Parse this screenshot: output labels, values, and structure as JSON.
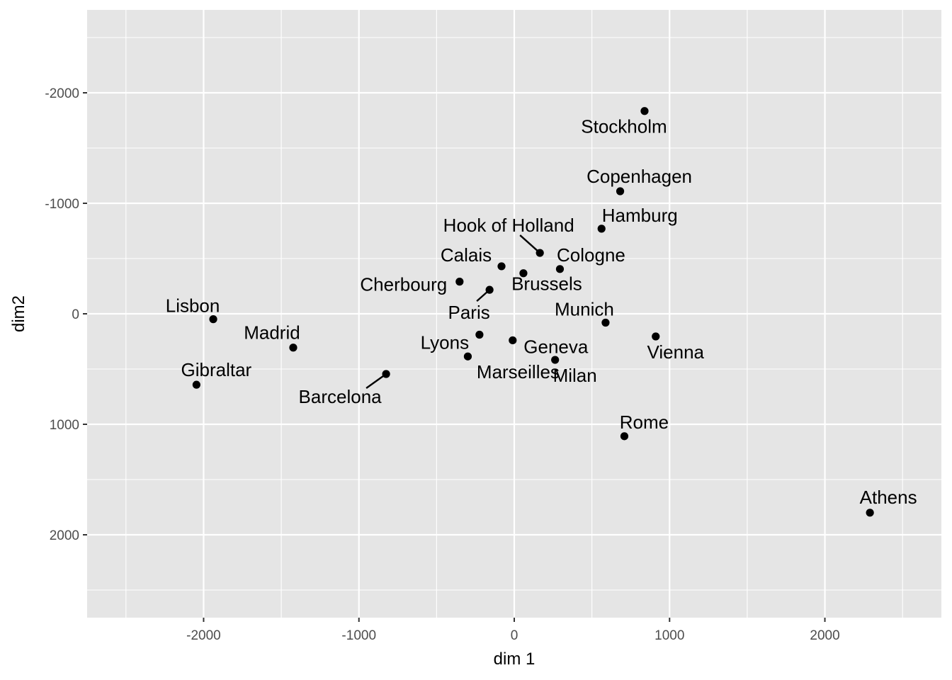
{
  "chart_data": {
    "type": "scatter",
    "title": "",
    "xlabel": "dim 1",
    "ylabel": "dim2",
    "xlim": [
      -2750,
      2750
    ],
    "ylim": [
      -2750,
      2750
    ],
    "y_reversed": true,
    "x_ticks": [
      -2000,
      -1000,
      0,
      1000,
      2000
    ],
    "y_ticks": [
      -2000,
      -1000,
      0,
      1000,
      2000
    ],
    "grid": true,
    "legend": "none",
    "colors": {
      "panel": "#e5e5e5",
      "grid": "#ffffff",
      "point": "#000000",
      "text": "#000000",
      "tick": "#4d4d4d"
    },
    "points": [
      {
        "label": "Athens",
        "x": 2290,
        "y": 1800
      },
      {
        "label": "Barcelona",
        "x": -825,
        "y": 545
      },
      {
        "label": "Brussels",
        "x": 59,
        "y": -367
      },
      {
        "label": "Calais",
        "x": -82,
        "y": -430
      },
      {
        "label": "Cherbourg",
        "x": -352,
        "y": -291
      },
      {
        "label": "Cologne",
        "x": 294,
        "y": -405
      },
      {
        "label": "Copenhagen",
        "x": 682,
        "y": -1109
      },
      {
        "label": "Geneva",
        "x": -10,
        "y": 240
      },
      {
        "label": "Gibraltar",
        "x": -2046,
        "y": 642
      },
      {
        "label": "Hamburg",
        "x": 562,
        "y": -770
      },
      {
        "label": "Hook of Holland",
        "x": 165,
        "y": -551
      },
      {
        "label": "Lisbon",
        "x": -1938,
        "y": 49
      },
      {
        "label": "Lyons",
        "x": -224,
        "y": 189
      },
      {
        "label": "Madrid",
        "x": -1423,
        "y": 306
      },
      {
        "label": "Marseilles",
        "x": -299,
        "y": 386
      },
      {
        "label": "Milan",
        "x": 263,
        "y": 417
      },
      {
        "label": "Munich",
        "x": 588,
        "y": 80
      },
      {
        "label": "Paris",
        "x": -159,
        "y": -217
      },
      {
        "label": "Rome",
        "x": 709,
        "y": 1108
      },
      {
        "label": "Stockholm",
        "x": 839,
        "y": -1835
      },
      {
        "label": "Vienna",
        "x": 911,
        "y": 205
      }
    ]
  }
}
